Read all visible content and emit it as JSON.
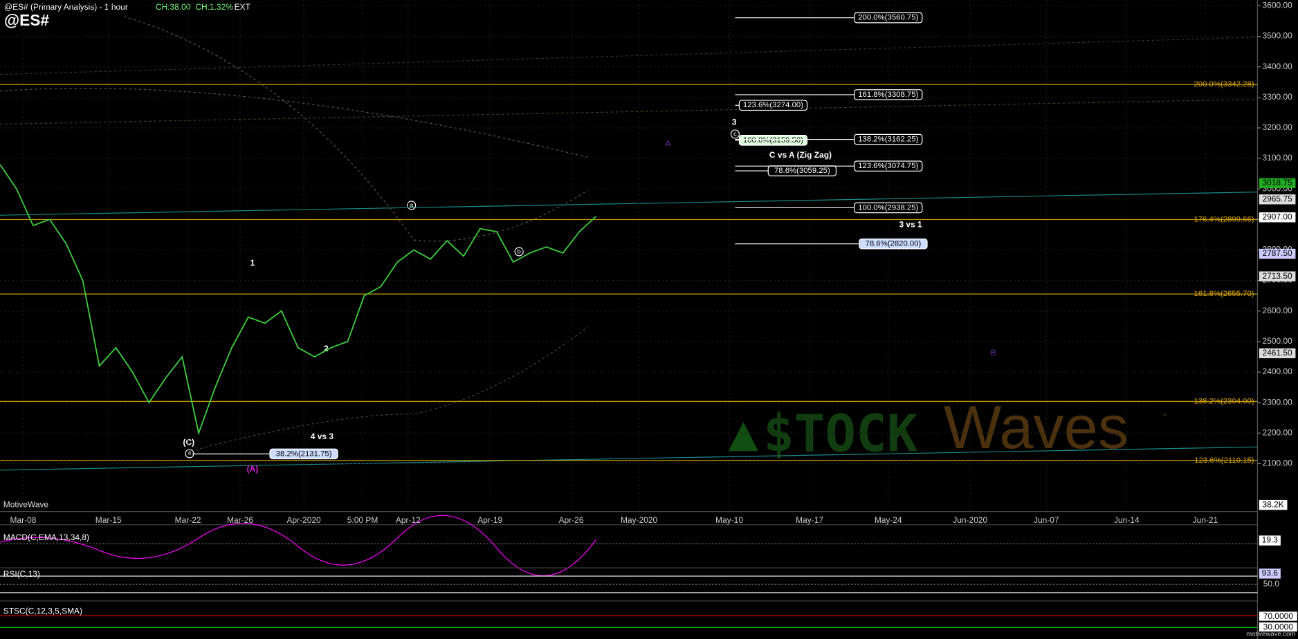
{
  "header": {
    "title": "@ES# (Primary Analysis) - 1 hour",
    "change": "CH:38.00",
    "change_pct": "CH:1.32%",
    "session": "EXT",
    "symbol": "@ES#"
  },
  "chart_data": {
    "type": "line",
    "ylim": [
      1943,
      3619
    ],
    "yticks": [
      {
        "value": 2100,
        "label": "2100.00"
      },
      {
        "value": 2200,
        "label": "2200.00"
      },
      {
        "value": 2300,
        "label": "2300.00"
      },
      {
        "value": 2400,
        "label": "2400.00"
      },
      {
        "value": 2500,
        "label": "2500.00"
      },
      {
        "value": 2600,
        "label": "2600.00"
      },
      {
        "value": 2700,
        "label": "2700.00"
      },
      {
        "value": 2800,
        "label": "2800.00"
      },
      {
        "value": 2900,
        "label": "2900.00"
      },
      {
        "value": 3000,
        "label": "3000.00"
      },
      {
        "value": 3100,
        "label": "3100.00"
      },
      {
        "value": 3200,
        "label": "3200.00"
      },
      {
        "value": 3300,
        "label": "3300.00"
      },
      {
        "value": 3400,
        "label": "3400.00"
      },
      {
        "value": 3500,
        "label": "3500.00"
      },
      {
        "value": 3600,
        "label": "3600.00"
      }
    ],
    "x_labels": [
      "Mar-08",
      "Mar-15",
      "Mar-22",
      "Mar-26",
      "Apr-2020",
      "5:00 PM",
      "Apr-12",
      "Apr-19",
      "Apr-26",
      "May-2020",
      "May-10",
      "May-17",
      "May-24",
      "Jun-2020",
      "Jun-07",
      "Jun-14",
      "Jun-21"
    ],
    "series": [
      {
        "name": "@ES#",
        "color": "#3ecf3e",
        "values": [
          3080,
          3000,
          2880,
          2900,
          2820,
          2700,
          2420,
          2480,
          2400,
          2300,
          2380,
          2450,
          2200,
          2350,
          2480,
          2580,
          2560,
          2600,
          2480,
          2450,
          2480,
          2500,
          2650,
          2680,
          2760,
          2800,
          2770,
          2830,
          2780,
          2870,
          2860,
          2760,
          2790,
          2810,
          2790,
          2860,
          2910
        ]
      }
    ],
    "levels": [
      {
        "value": 3342.28,
        "label": "200.0%(3342.28)"
      },
      {
        "value": 2899.66,
        "label": "176.4%(2899.66)"
      },
      {
        "value": 2655.7,
        "label": "161.8%(2655.70)"
      },
      {
        "value": 2304,
        "label": "138.2%(2304.00)"
      },
      {
        "value": 2110.15,
        "label": "123.6%(2110.15)"
      }
    ],
    "fib_boxes": [
      {
        "value": 3560.75,
        "label": "200.0%(3560.75)"
      },
      {
        "value": 3308.75,
        "label": "161.8%(3308.75)"
      },
      {
        "value": 3274,
        "label": "123.6%(3274.00)"
      },
      {
        "value": 3159.5,
        "label": "100.0%(3159.50)"
      },
      {
        "value": 3162.25,
        "label": "138.2%(3162.25)"
      },
      {
        "value": 3059.25,
        "label": "78.6%(3059.25)"
      },
      {
        "value": 3074.75,
        "label": "123.6%(3074.75)"
      },
      {
        "value": 2938.25,
        "label": "100.0%(2938.25)"
      },
      {
        "value": 2820,
        "label": "78.6%(2820.00)"
      },
      {
        "value": 2131.75,
        "label": "38.2%(2131.75)"
      }
    ],
    "price_boxes": [
      {
        "value": 3018.75,
        "label": "3018.75"
      },
      {
        "value": 2965.75,
        "label": "2965.75"
      },
      {
        "value": 2907,
        "label": "2907.00"
      },
      {
        "value": 2787.5,
        "label": "2787.50"
      },
      {
        "value": 2713.5,
        "label": "2713.50"
      },
      {
        "value": 2461.5,
        "label": "2461.50"
      }
    ]
  },
  "waves": {
    "w1": "1",
    "w2": "2",
    "w3": "3",
    "w4": "4",
    "wC": "(C)",
    "wA": "(A)",
    "A": "A",
    "B": "B",
    "c43": "4 vs 3",
    "c31": "3 vs 1",
    "zz": "C vs A (Zig Zag)",
    "a": "a",
    "b": "b",
    "c": "c",
    "w4c": "4"
  },
  "footer": {
    "brand": "MotiveWave",
    "volume": "38.2K",
    "site": "motivewave.com"
  },
  "indicators": {
    "macd": "MACD(C,EMA,13,34,8)",
    "macd_val": "19.3",
    "rsi": "RSI(C,13)",
    "rsi_val": "93.6",
    "rsi_mid": "50.0",
    "stsc": "STSC(C,12,3,5,SMA)",
    "stsc_hi": "70.0000",
    "stsc_lo": "30.0000"
  },
  "watermark": {
    "stock": "$TOCK",
    "waves": "Waves",
    "tm": "™"
  }
}
